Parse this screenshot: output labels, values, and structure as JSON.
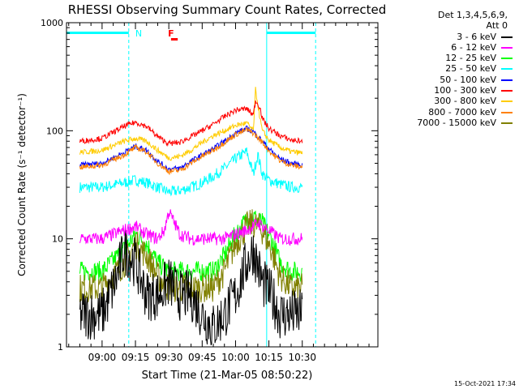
{
  "chart_data": {
    "type": "line",
    "title": "RHESSI Observing Summary Count Rates, Corrected",
    "xlabel": "Start Time (21-Mar-05 08:50:22)",
    "ylabel": "Corrected Count Rate (s⁻¹ detector⁻¹)",
    "yscale": "log",
    "ylim": [
      1,
      1000
    ],
    "y_tick_labels": [
      "1",
      "10",
      "100",
      "1000"
    ],
    "x_range_min": [
      -6,
      134
    ],
    "x_ticks": [
      {
        "t": 10,
        "label": "09:00"
      },
      {
        "t": 25,
        "label": "09:15"
      },
      {
        "t": 40,
        "label": "09:30"
      },
      {
        "t": 55,
        "label": "09:45"
      },
      {
        "t": 70,
        "label": "10:00"
      },
      {
        "t": 85,
        "label": "10:15"
      },
      {
        "t": 100,
        "label": "10:30"
      }
    ],
    "legend_header": [
      "Det 1,3,4,5,6,9,",
      "Att 0"
    ],
    "series": [
      {
        "name": "3 - 6 keV",
        "color": "#000000",
        "t": [
          0,
          10,
          16,
          20,
          25,
          30,
          35,
          40,
          45,
          50,
          55,
          60,
          65,
          70,
          75,
          78,
          82,
          86,
          90,
          95,
          100
        ],
        "values": [
          2,
          2,
          4,
          8,
          6,
          3,
          3,
          4,
          3,
          3,
          2,
          1.5,
          2,
          3,
          6,
          8,
          4,
          3,
          2,
          2,
          2
        ]
      },
      {
        "name": "6 - 12 keV",
        "color": "#ff00ff",
        "t": [
          0,
          10,
          20,
          25,
          30,
          35,
          38,
          40,
          45,
          50,
          55,
          60,
          65,
          70,
          75,
          80,
          85,
          90,
          95,
          100
        ],
        "values": [
          10,
          10,
          12,
          13,
          11,
          10,
          12,
          18,
          11,
          10,
          10,
          10,
          10,
          11,
          12,
          14,
          12,
          10,
          10,
          10
        ]
      },
      {
        "name": "12 - 25 keV",
        "color": "#00ff00",
        "t": [
          0,
          10,
          20,
          25,
          30,
          35,
          40,
          45,
          50,
          55,
          60,
          65,
          70,
          75,
          78,
          82,
          86,
          90,
          95,
          100
        ],
        "values": [
          5,
          5,
          8,
          11,
          9,
          6,
          5,
          5,
          5,
          5,
          5,
          7,
          11,
          15,
          16,
          14,
          10,
          6,
          5,
          5
        ]
      },
      {
        "name": "25 - 50 keV",
        "color": "#00ffff",
        "t": [
          0,
          10,
          20,
          25,
          30,
          35,
          40,
          45,
          50,
          55,
          60,
          65,
          70,
          75,
          78,
          80,
          82,
          85,
          90,
          95,
          100
        ],
        "values": [
          30,
          30,
          33,
          35,
          33,
          30,
          27,
          28,
          30,
          33,
          38,
          45,
          55,
          64,
          40,
          60,
          40,
          35,
          32,
          30,
          30
        ]
      },
      {
        "name": "50 - 100 keV",
        "color": "#0000ff",
        "t": [
          0,
          10,
          20,
          25,
          30,
          35,
          40,
          45,
          50,
          55,
          60,
          65,
          70,
          75,
          78,
          82,
          86,
          90,
          95,
          100
        ],
        "values": [
          48,
          50,
          63,
          72,
          66,
          52,
          44,
          45,
          52,
          60,
          68,
          80,
          95,
          105,
          98,
          80,
          65,
          55,
          50,
          48
        ]
      },
      {
        "name": "100 - 300 keV",
        "color": "#ff0000",
        "t": [
          0,
          10,
          20,
          25,
          30,
          35,
          40,
          45,
          50,
          55,
          60,
          65,
          70,
          75,
          78,
          79,
          81,
          82,
          85,
          90,
          95,
          100
        ],
        "values": [
          80,
          85,
          110,
          120,
          110,
          88,
          76,
          78,
          88,
          100,
          115,
          135,
          155,
          160,
          140,
          190,
          165,
          130,
          105,
          90,
          82,
          80
        ]
      },
      {
        "name": "300 - 800 keV",
        "color": "#ffcc00",
        "t": [
          0,
          10,
          20,
          25,
          30,
          35,
          40,
          45,
          50,
          55,
          60,
          65,
          70,
          75,
          78,
          79,
          81,
          82,
          85,
          90,
          95,
          100
        ],
        "values": [
          63,
          66,
          80,
          85,
          80,
          66,
          56,
          58,
          66,
          78,
          90,
          100,
          112,
          118,
          100,
          240,
          130,
          100,
          82,
          70,
          64,
          62
        ]
      },
      {
        "name": "800 - 7000 keV",
        "color": "#ff8000",
        "t": [
          0,
          10,
          20,
          25,
          30,
          35,
          40,
          45,
          50,
          55,
          60,
          65,
          70,
          75,
          78,
          82,
          86,
          90,
          95,
          100
        ],
        "values": [
          46,
          48,
          60,
          70,
          64,
          50,
          42,
          43,
          50,
          58,
          66,
          78,
          92,
          102,
          95,
          78,
          62,
          53,
          48,
          46
        ]
      },
      {
        "name": "7000 - 15000 keV",
        "color": "#808000",
        "t": [
          0,
          10,
          20,
          25,
          30,
          35,
          40,
          45,
          50,
          55,
          60,
          65,
          70,
          75,
          78,
          82,
          86,
          90,
          95,
          100
        ],
        "values": [
          3.5,
          3.5,
          6,
          9,
          7,
          4.5,
          3.5,
          3.5,
          3.5,
          3.5,
          3.5,
          5,
          9,
          13,
          14,
          12,
          8,
          4.5,
          3.5,
          3.5
        ]
      }
    ],
    "annotations": [
      {
        "text": "N",
        "color": "#00ffff",
        "t": 25
      },
      {
        "text": "F",
        "color": "#ff0000",
        "t": 41
      }
    ],
    "night_periods": [
      [
        -6,
        22
      ],
      [
        84,
        106
      ]
    ],
    "vertical_lines": [
      {
        "t": 22,
        "style": "dashed",
        "color": "#00ffff"
      },
      {
        "t": 84,
        "style": "solid",
        "color": "#00ffff"
      },
      {
        "t": 106,
        "style": "dashed",
        "color": "#00ffff"
      }
    ],
    "flare_bar": [
      41,
      44
    ],
    "timestamp": "15-Oct-2021 17:34"
  }
}
